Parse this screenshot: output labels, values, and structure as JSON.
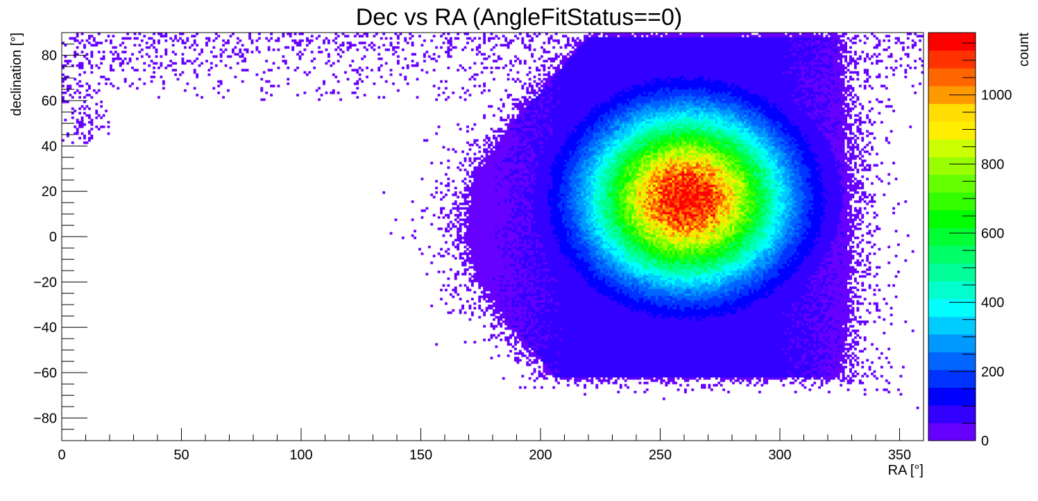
{
  "chart_data": {
    "type": "heatmap",
    "title": "Dec vs RA (AngleFitStatus==0)",
    "xlabel": "RA [°]",
    "ylabel": "declination [°]",
    "zlabel": "count",
    "xlim": [
      0,
      360
    ],
    "ylim": [
      -90,
      90
    ],
    "zlim": [
      0,
      1180
    ],
    "x_ticks": [
      0,
      50,
      100,
      150,
      200,
      250,
      300,
      350
    ],
    "y_ticks": [
      -80,
      -60,
      -40,
      -20,
      0,
      20,
      40,
      60,
      80
    ],
    "z_ticks": [
      0,
      200,
      400,
      600,
      800,
      1000
    ],
    "bins": {
      "x": 360,
      "y": 180
    },
    "peak": {
      "ra": 261,
      "dec": 17,
      "count": 1180
    },
    "core_width": {
      "ra": 26,
      "dec": 24
    },
    "grid": false,
    "palette": [
      "#6600ff",
      "#3300ff",
      "#0000ff",
      "#0033ff",
      "#0066ff",
      "#0099ff",
      "#00ccff",
      "#00ffff",
      "#00ffcc",
      "#00ff99",
      "#00ff66",
      "#00ff33",
      "#00ff00",
      "#33ff00",
      "#66ff00",
      "#99ff00",
      "#ccff00",
      "#ffee00",
      "#ffdd00",
      "#ff9900",
      "#ff6600",
      "#ff3300",
      "#ff0000"
    ]
  }
}
